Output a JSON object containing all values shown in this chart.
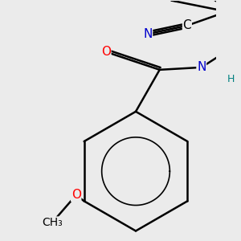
{
  "bg_color": "#ebebeb",
  "atom_colors": {
    "C": "#000000",
    "N": "#0000cc",
    "O": "#ff0000",
    "S": "#cccc00",
    "H": "#008080"
  },
  "bond_color": "#000000",
  "bond_width": 1.8,
  "font_size": 11,
  "figsize": [
    3.0,
    3.0
  ],
  "dpi": 100,
  "xlim": [
    0.5,
    7.5
  ],
  "ylim": [
    0.5,
    8.5
  ]
}
